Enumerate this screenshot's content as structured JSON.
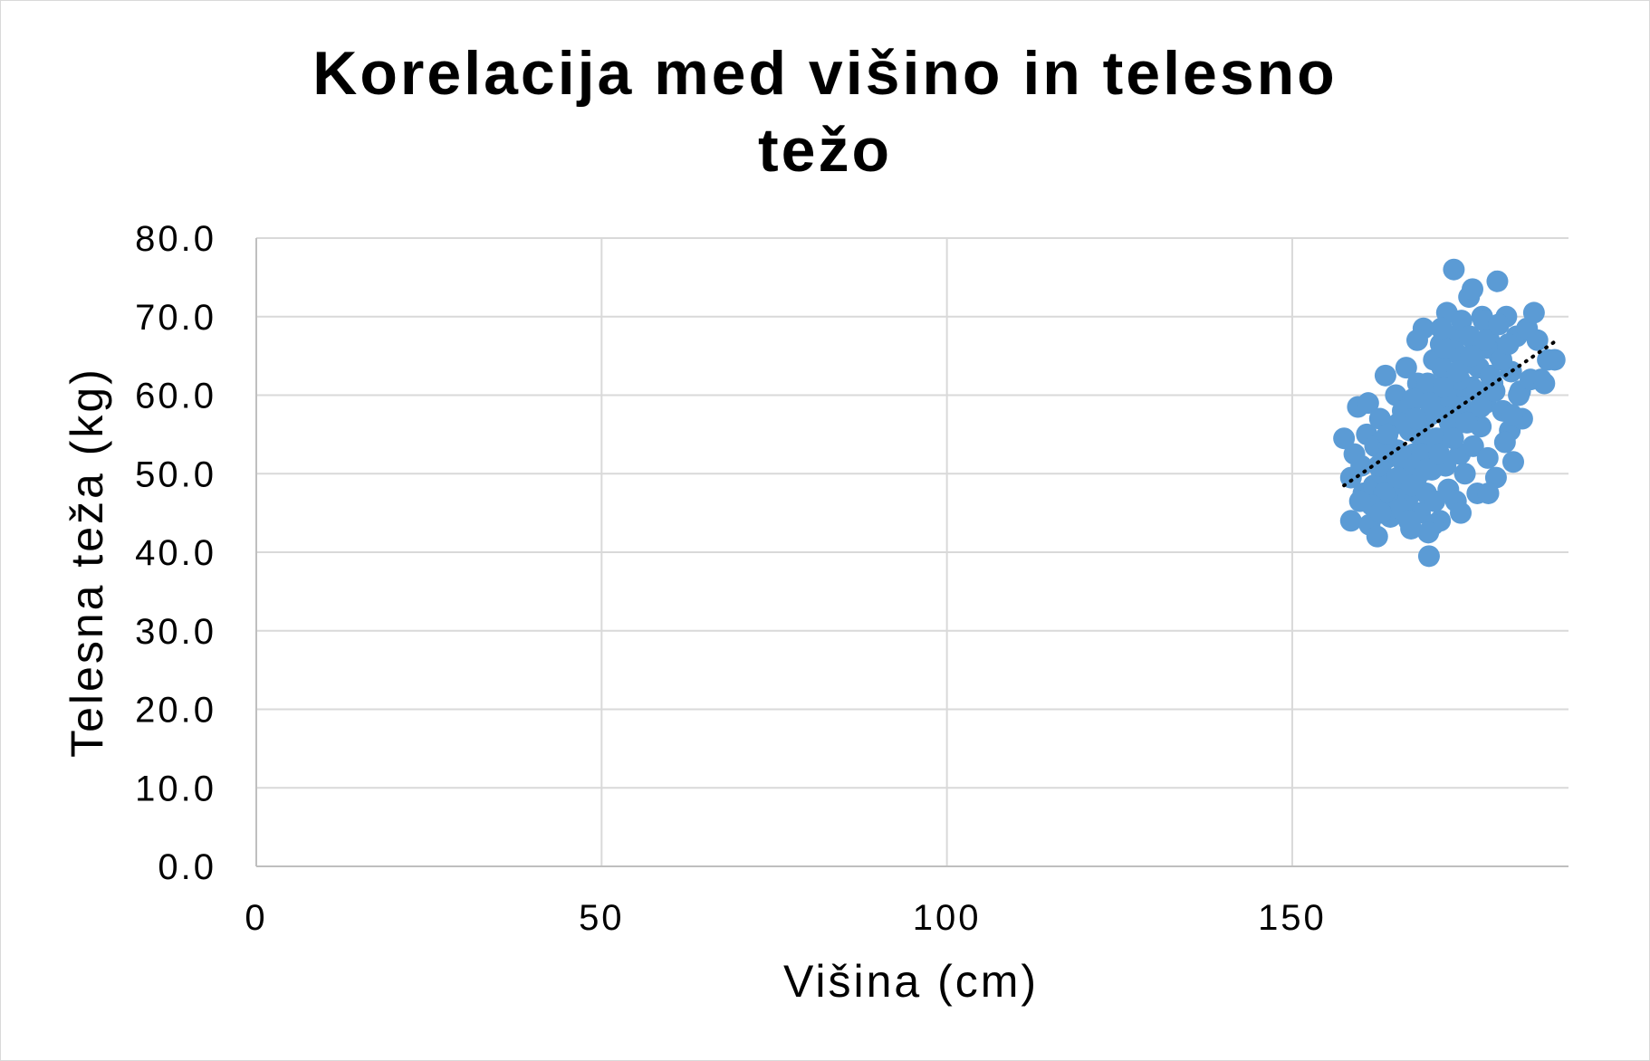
{
  "chart_data": {
    "type": "scatter",
    "title": "Korelacija med višino in telesno težo",
    "title_lines": [
      "Korelacija med višino in telesno",
      "težo"
    ],
    "xlabel": "Višina (cm)",
    "ylabel": "Telesna teža (kg)",
    "xlim": [
      0,
      190
    ],
    "ylim": [
      0,
      80
    ],
    "x_ticks": [
      0,
      50,
      100,
      150
    ],
    "x_tick_labels": [
      "0",
      "50",
      "100",
      "150"
    ],
    "y_ticks": [
      0,
      10,
      20,
      30,
      40,
      50,
      60,
      70,
      80
    ],
    "y_tick_labels": [
      "0.0",
      "10.0",
      "20.0",
      "30.0",
      "40.0",
      "50.0",
      "60.0",
      "70.0",
      "80.0"
    ],
    "grid": true,
    "legend": "none",
    "point_color": "#5b9bd5",
    "trendline": {
      "style": "dotted",
      "color": "#000000",
      "x": [
        157.5,
        188
      ],
      "y": [
        48.5,
        66.8
      ]
    },
    "series": [
      {
        "x": [
          157.5,
          158.5,
          158.5,
          159.0,
          159.5,
          160.0,
          160.3,
          160.8,
          161.2,
          161.0,
          161.8,
          162.0,
          162.3,
          162.7,
          163.0,
          163.1,
          163.5,
          163.7,
          164.2,
          164.3,
          164.8,
          165.0,
          165.2,
          165.6,
          166.0,
          166.1,
          166.5,
          166.8,
          167.0,
          167.2,
          167.5,
          167.6,
          168.0,
          168.2,
          168.5,
          168.7,
          169.0,
          169.1,
          169.4,
          169.5,
          169.8,
          170.0,
          170.2,
          170.5,
          170.6,
          171.0,
          171.2,
          171.4,
          171.5,
          172.0,
          172.2,
          172.4,
          172.6,
          173.0,
          173.2,
          173.5,
          173.7,
          174.0,
          174.3,
          174.5,
          174.8,
          175.0,
          175.4,
          175.6,
          176.0,
          176.2,
          176.5,
          176.8,
          177.0,
          177.3,
          177.5,
          178.0,
          178.3,
          178.5,
          179.0,
          179.5,
          179.7,
          180.0,
          180.5,
          181.0,
          181.5,
          181.7,
          182.0,
          182.5,
          183.0,
          183.3,
          184.0,
          185.0,
          186.0,
          187.0,
          164.5,
          166.3,
          168.3,
          170.3,
          172.3,
          174.2,
          176.3,
          178.2,
          165.5,
          167.8,
          169.6,
          171.7,
          173.6,
          175.7,
          177.7,
          162.5,
          164.0,
          166.7,
          168.8,
          170.8,
          172.8,
          174.6,
          176.7,
          178.7,
          180.3,
          163.3,
          165.3,
          167.3,
          169.3,
          171.3,
          173.3,
          175.3,
          177.3,
          179.3,
          161.5,
          163.8,
          165.8,
          167.9,
          169.9,
          171.9,
          173.9,
          175.9,
          177.9,
          179.9,
          181.3,
          182.8,
          184.5,
          185.5,
          186.5,
          188.0,
          180.8,
          181.8,
          159.8,
          162.8,
          166.9,
          170.4,
          174.4,
          178.4,
          168.1,
          172.1,
          176.1,
          171.6,
          169.7,
          173.4
        ],
        "y": [
          54.5,
          49.5,
          44.0,
          52.5,
          58.5,
          51.0,
          47.5,
          55.0,
          43.5,
          59.0,
          48.5,
          53.5,
          42.0,
          57.0,
          50.0,
          46.0,
          62.5,
          52.0,
          44.5,
          56.0,
          49.0,
          60.0,
          53.0,
          46.5,
          58.0,
          51.5,
          63.5,
          47.0,
          55.5,
          43.0,
          59.5,
          52.5,
          49.5,
          61.5,
          45.0,
          56.5,
          68.5,
          53.5,
          47.5,
          60.5,
          39.5,
          57.5,
          50.5,
          64.5,
          46.5,
          54.5,
          61.0,
          44.0,
          66.5,
          58.5,
          51.0,
          70.5,
          48.0,
          62.5,
          55.5,
          67.5,
          46.5,
          59.5,
          52.5,
          69.5,
          64.0,
          50.0,
          57.0,
          72.5,
          61.0,
          53.5,
          66.0,
          47.5,
          63.5,
          56.0,
          70.0,
          59.0,
          52.0,
          67.0,
          61.5,
          49.5,
          74.5,
          65.0,
          58.0,
          70.0,
          55.5,
          63.0,
          51.5,
          67.5,
          60.5,
          57.0,
          68.5,
          70.5,
          62.0,
          64.5,
          48.5,
          52.0,
          55.0,
          58.0,
          60.0,
          62.0,
          64.0,
          66.0,
          56.5,
          59.5,
          61.5,
          63.5,
          65.5,
          67.5,
          69.5,
          51.0,
          53.5,
          50.5,
          52.5,
          54.5,
          56.5,
          58.5,
          60.5,
          62.5,
          64.5,
          47.5,
          49.5,
          48.5,
          50.5,
          52.5,
          54.5,
          56.5,
          58.5,
          60.5,
          46.0,
          55.0,
          45.5,
          57.0,
          59.0,
          61.0,
          63.0,
          65.0,
          67.0,
          69.0,
          66.5,
          60.0,
          62.0,
          67.0,
          61.5,
          64.5,
          54.0,
          57.5,
          46.5,
          45.0,
          44.0,
          43.5,
          45.0,
          47.5,
          67.0,
          66.0,
          73.5,
          68.5,
          42.5,
          76.0
        ],
        "note_hidden": null
      }
    ]
  }
}
